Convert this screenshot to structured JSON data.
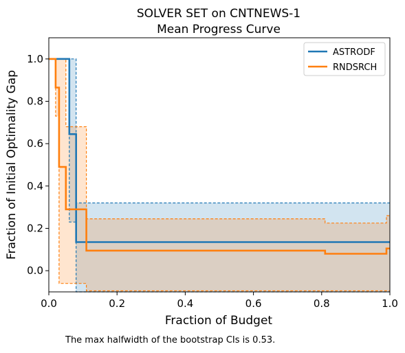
{
  "chart_data": {
    "type": "line",
    "title_lines": [
      "SOLVER SET on CNTNEWS-1",
      "Mean Progress Curve"
    ],
    "xlabel": "Fraction of Budget",
    "ylabel": "Fraction of Initial Optimality Gap",
    "xlim": [
      0,
      1.0
    ],
    "ylim": [
      -0.1,
      1.1
    ],
    "xticks": [
      "0.0",
      "0.2",
      "0.4",
      "0.6",
      "0.8",
      "1.0"
    ],
    "yticks": [
      "0.0",
      "0.2",
      "0.4",
      "0.6",
      "0.8",
      "1.0"
    ],
    "grid": false,
    "legend_position": "top-right",
    "series": [
      {
        "name": "ASTRODF",
        "color": "#1f77b4",
        "mean": {
          "x": [
            0,
            0.06,
            0.06,
            0.08,
            0.08,
            1.0
          ],
          "y": [
            1.0,
            1.0,
            0.645,
            0.645,
            0.135,
            0.135
          ]
        },
        "ci_upper": {
          "x": [
            0,
            0.08,
            0.08,
            1.0
          ],
          "y": [
            1.0,
            1.0,
            0.32,
            0.32
          ]
        },
        "ci_lower": {
          "x": [
            0,
            0.06,
            0.06,
            0.08,
            0.08,
            1.0
          ],
          "y": [
            1.0,
            1.0,
            0.23,
            0.23,
            -0.1,
            -0.1
          ]
        }
      },
      {
        "name": "RNDSRCH",
        "color": "#ff7f0e",
        "mean": {
          "x": [
            0,
            0.02,
            0.02,
            0.03,
            0.03,
            0.05,
            0.05,
            0.11,
            0.11,
            0.81,
            0.81,
            0.99,
            0.99,
            1.0
          ],
          "y": [
            1.0,
            1.0,
            0.865,
            0.865,
            0.49,
            0.49,
            0.29,
            0.29,
            0.095,
            0.095,
            0.08,
            0.08,
            0.105,
            0.105
          ]
        },
        "ci_upper": {
          "x": [
            0,
            0.05,
            0.05,
            0.11,
            0.11,
            0.81,
            0.81,
            0.99,
            0.99,
            1.0
          ],
          "y": [
            1.0,
            1.0,
            0.68,
            0.68,
            0.245,
            0.245,
            0.225,
            0.225,
            0.26,
            0.26
          ]
        },
        "ci_lower": {
          "x": [
            0,
            0.02,
            0.02,
            0.03,
            0.03,
            0.11,
            0.11,
            1.0
          ],
          "y": [
            1.0,
            1.0,
            0.73,
            0.73,
            -0.06,
            -0.06,
            -0.095,
            -0.095
          ]
        }
      }
    ]
  },
  "caption": "The max halfwidth of the bootstrap CIs is 0.53."
}
